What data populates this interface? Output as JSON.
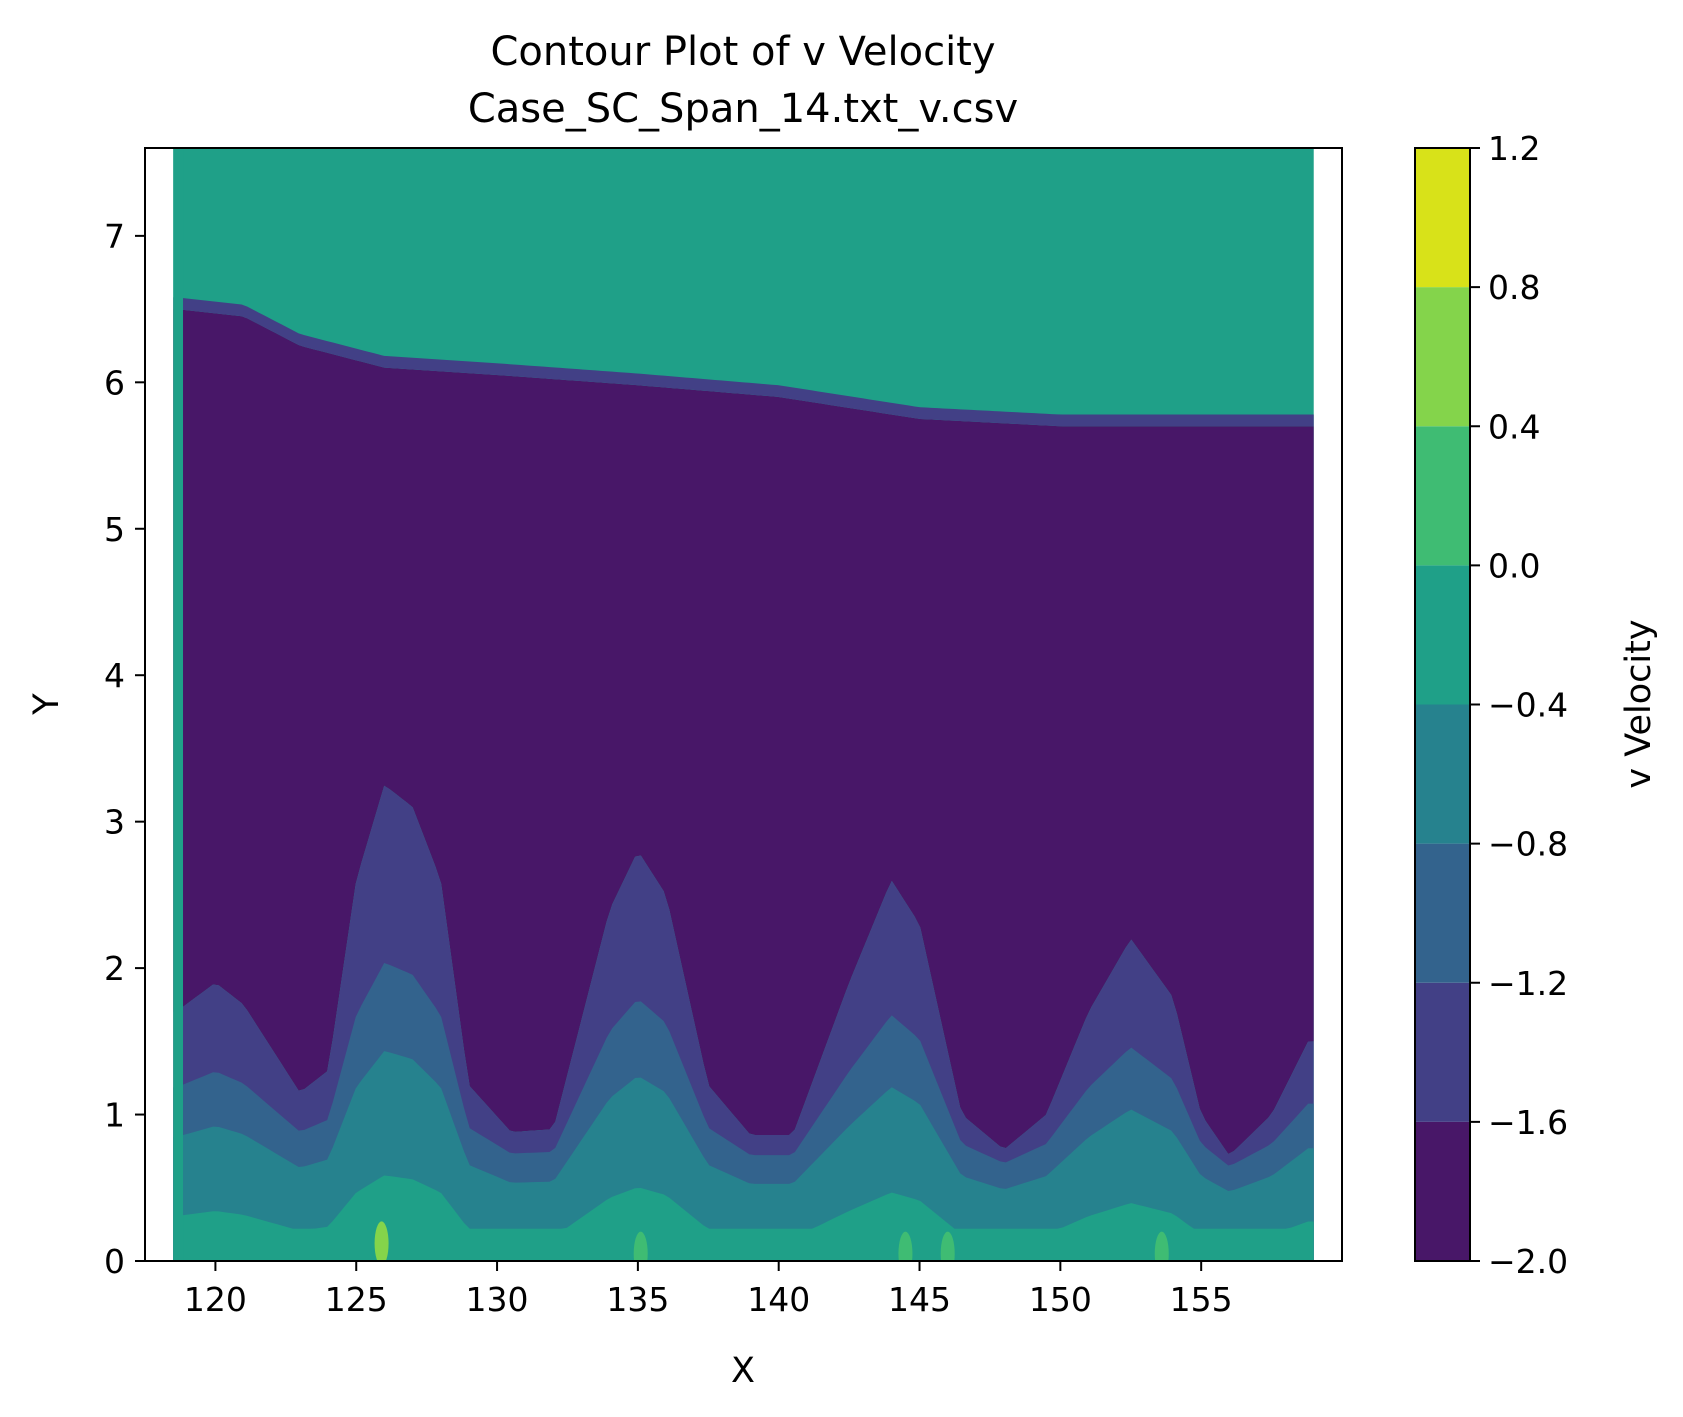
{
  "chart_data": {
    "type": "contour",
    "title": "Contour Plot of v Velocity",
    "subtitle": "Case_SC_Span_14.txt_v.csv",
    "xlabel": "X",
    "ylabel": "Y",
    "xlim": [
      117.5,
      160
    ],
    "ylim": [
      0,
      7.6
    ],
    "x_data_range": [
      118.5,
      159
    ],
    "xticks": [
      "120",
      "125",
      "130",
      "135",
      "140",
      "145",
      "150",
      "155"
    ],
    "xtick_values": [
      120,
      125,
      130,
      135,
      140,
      145,
      150,
      155
    ],
    "yticks": [
      "0",
      "1",
      "2",
      "3",
      "4",
      "5",
      "6",
      "7"
    ],
    "ytick_values": [
      0,
      1,
      2,
      3,
      4,
      5,
      6,
      7
    ],
    "grid": false,
    "colormap": "viridis",
    "colorbar": {
      "label": "v Velocity",
      "ticks": [
        "1.2",
        "0.8",
        "0.4",
        "0.0",
        "−0.4",
        "−0.8",
        "−1.2",
        "−1.6",
        "−2.0"
      ],
      "tick_values": [
        1.2,
        0.8,
        0.4,
        0.0,
        -0.4,
        -0.8,
        -1.2,
        -1.6,
        -2.0
      ],
      "levels": [
        -2.0,
        -1.6,
        -1.2,
        -0.8,
        -0.4,
        0.0,
        0.4,
        0.8,
        1.2
      ],
      "colors": [
        "#481768",
        "#424086",
        "#33638d",
        "#26828e",
        "#1fa088",
        "#3fbc73",
        "#84d44b",
        "#d8e219"
      ]
    },
    "regions": {
      "upper_boundary_y": [
        [
          118.6,
          6.5
        ],
        [
          121,
          6.45
        ],
        [
          123,
          6.25
        ],
        [
          126,
          6.1
        ],
        [
          130,
          6.05
        ],
        [
          135,
          5.98
        ],
        [
          140,
          5.9
        ],
        [
          145,
          5.75
        ],
        [
          150,
          5.7
        ],
        [
          155,
          5.7
        ],
        [
          158.8,
          5.7
        ]
      ],
      "lower_contour_y_at_min_level": [
        [
          118.6,
          1.7
        ],
        [
          120,
          1.9
        ],
        [
          121,
          1.75
        ],
        [
          123,
          1.15
        ],
        [
          124,
          1.3
        ],
        [
          125,
          2.6
        ],
        [
          126,
          3.25
        ],
        [
          127,
          3.1
        ],
        [
          128,
          2.6
        ],
        [
          129,
          1.2
        ],
        [
          130.5,
          0.88
        ],
        [
          132,
          0.9
        ],
        [
          134,
          2.4
        ],
        [
          135,
          2.8
        ],
        [
          136,
          2.5
        ],
        [
          137.5,
          1.2
        ],
        [
          139,
          0.86
        ],
        [
          140.5,
          0.86
        ],
        [
          142.5,
          1.9
        ],
        [
          144,
          2.6
        ],
        [
          145,
          2.3
        ],
        [
          146.5,
          1.0
        ],
        [
          148,
          0.76
        ],
        [
          149.5,
          1.0
        ],
        [
          151,
          1.7
        ],
        [
          152.5,
          2.2
        ],
        [
          154,
          1.8
        ],
        [
          155,
          1.0
        ],
        [
          156,
          0.72
        ],
        [
          157.5,
          1.0
        ],
        [
          158.8,
          1.5
        ]
      ],
      "field_values": {
        "upper_band": -0.2,
        "core": -1.8,
        "near_wall": -0.4
      }
    }
  }
}
